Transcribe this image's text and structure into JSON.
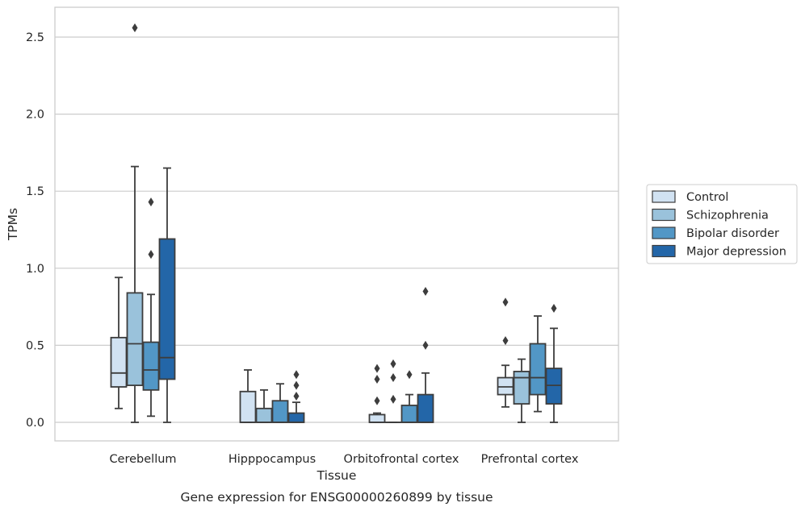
{
  "chart_data": {
    "type": "box",
    "caption": "Gene expression for ENSG00000260899 by tissue",
    "xlabel": "Tissue",
    "ylabel": "TPMs",
    "ylim": [
      -0.12,
      2.7
    ],
    "yticks": [
      0.0,
      0.5,
      1.0,
      1.5,
      2.0,
      2.5
    ],
    "ytick_labels": [
      "0.0",
      "0.5",
      "1.0",
      "1.5",
      "2.0",
      "2.5"
    ],
    "grid": "horizontal",
    "legend_position": "right",
    "categories": [
      "Cerebellum",
      "Hipppocampus",
      "Orbitofrontal cortex",
      "Prefrontal cortex"
    ],
    "series": [
      {
        "name": "Control",
        "color": "#d1e2f2",
        "boxes": [
          {
            "q1": 0.23,
            "median": 0.32,
            "q3": 0.55,
            "whisker_low": 0.09,
            "whisker_high": 0.94,
            "outliers": []
          },
          {
            "q1": 0.0,
            "median": 0.0,
            "q3": 0.2,
            "whisker_low": 0.0,
            "whisker_high": 0.34,
            "outliers": []
          },
          {
            "q1": 0.0,
            "median": 0.0,
            "q3": 0.05,
            "whisker_low": 0.0,
            "whisker_high": 0.06,
            "outliers": [
              0.14,
              0.28,
              0.35
            ]
          },
          {
            "q1": 0.18,
            "median": 0.23,
            "q3": 0.29,
            "whisker_low": 0.1,
            "whisker_high": 0.37,
            "outliers": [
              0.53,
              0.78
            ]
          }
        ]
      },
      {
        "name": "Schizophrenia",
        "color": "#9ac2db",
        "boxes": [
          {
            "q1": 0.24,
            "median": 0.51,
            "q3": 0.84,
            "whisker_low": 0.0,
            "whisker_high": 1.66,
            "outliers": [
              2.56
            ]
          },
          {
            "q1": 0.0,
            "median": 0.0,
            "q3": 0.09,
            "whisker_low": 0.0,
            "whisker_high": 0.21,
            "outliers": []
          },
          {
            "q1": 0.0,
            "median": 0.0,
            "q3": 0.0,
            "whisker_low": 0.0,
            "whisker_high": 0.0,
            "outliers": [
              0.15,
              0.29,
              0.38
            ]
          },
          {
            "q1": 0.12,
            "median": 0.29,
            "q3": 0.33,
            "whisker_low": 0.0,
            "whisker_high": 0.41,
            "outliers": []
          }
        ]
      },
      {
        "name": "Bipolar disorder",
        "color": "#5297c6",
        "boxes": [
          {
            "q1": 0.21,
            "median": 0.34,
            "q3": 0.52,
            "whisker_low": 0.04,
            "whisker_high": 0.83,
            "outliers": [
              1.09,
              1.43
            ]
          },
          {
            "q1": 0.0,
            "median": 0.0,
            "q3": 0.14,
            "whisker_low": 0.0,
            "whisker_high": 0.25,
            "outliers": []
          },
          {
            "q1": 0.0,
            "median": 0.0,
            "q3": 0.11,
            "whisker_low": 0.0,
            "whisker_high": 0.18,
            "outliers": [
              0.31
            ]
          },
          {
            "q1": 0.18,
            "median": 0.29,
            "q3": 0.51,
            "whisker_low": 0.07,
            "whisker_high": 0.69,
            "outliers": []
          }
        ]
      },
      {
        "name": "Major depression",
        "color": "#2366a8",
        "boxes": [
          {
            "q1": 0.28,
            "median": 0.42,
            "q3": 1.19,
            "whisker_low": 0.0,
            "whisker_high": 1.65,
            "outliers": []
          },
          {
            "q1": 0.0,
            "median": 0.0,
            "q3": 0.06,
            "whisker_low": 0.0,
            "whisker_high": 0.13,
            "outliers": [
              0.17,
              0.24,
              0.31
            ]
          },
          {
            "q1": 0.0,
            "median": 0.0,
            "q3": 0.18,
            "whisker_low": 0.0,
            "whisker_high": 0.32,
            "outliers": [
              0.5,
              0.85
            ]
          },
          {
            "q1": 0.12,
            "median": 0.24,
            "q3": 0.35,
            "whisker_low": 0.0,
            "whisker_high": 0.61,
            "outliers": [
              0.74
            ]
          }
        ]
      }
    ]
  },
  "style": {
    "edge_color": "#3d3d3d",
    "grid_color": "#cccccc",
    "frame_color": "#cccccc",
    "background": "#ffffff"
  }
}
